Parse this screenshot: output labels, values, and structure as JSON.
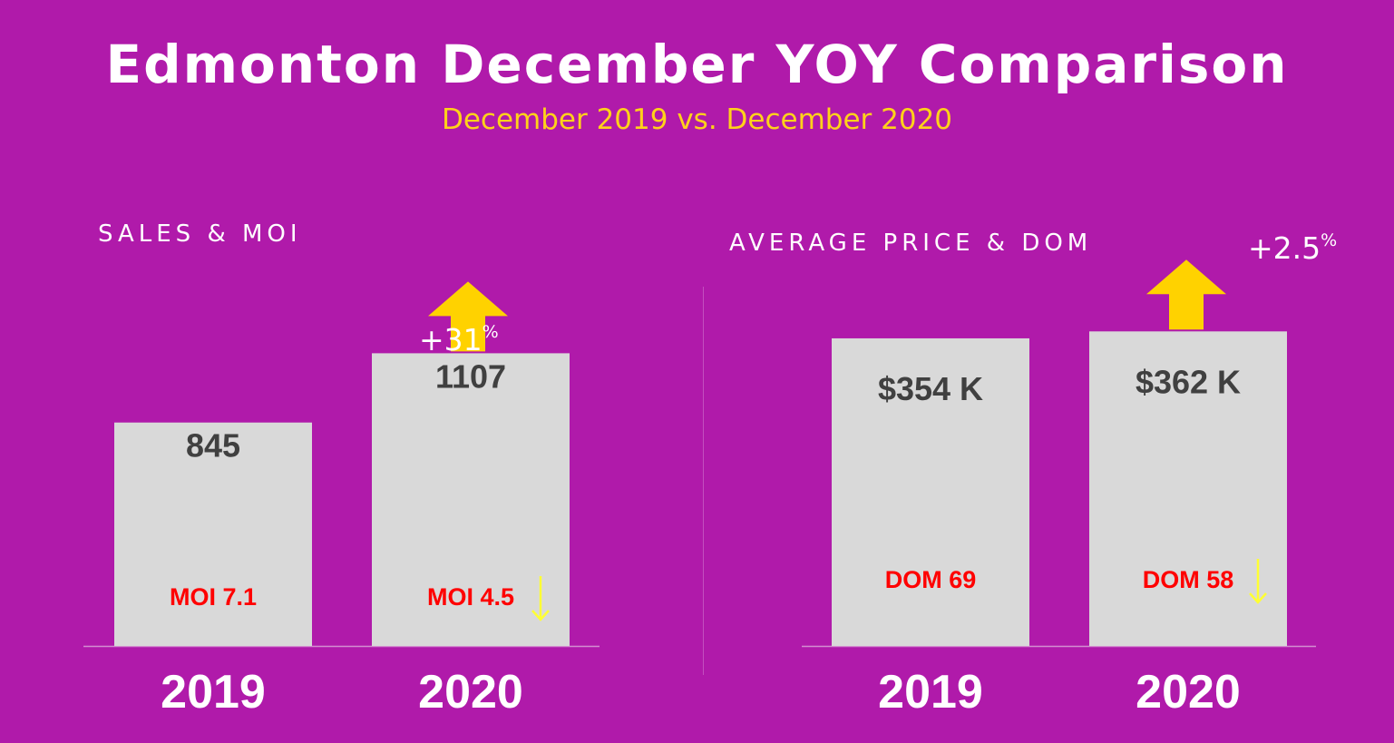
{
  "title": "Edmonton December YOY Comparison",
  "subtitle": "December 2019 vs. December 2020",
  "colors": {
    "background": "#b01aaa",
    "bar": "#d9d9d9",
    "title": "#ffffff",
    "subtitle": "#ffd21a",
    "arrow": "#ffd200",
    "value_text": "#404040",
    "secondary_text": "#ff0000",
    "down_arrow": "#ffff33",
    "baseline": "#d38ed0"
  },
  "chart_data": [
    {
      "type": "bar",
      "title": "SALES & MOI",
      "categories": [
        "2019",
        "2020"
      ],
      "values": [
        845,
        1107
      ],
      "value_labels": [
        "845",
        "1107"
      ],
      "secondary_labels": [
        "MOI 7.1",
        "MOI 4.5"
      ],
      "secondary_trend": [
        "none",
        "down"
      ],
      "change": "+31",
      "change_unit": "%",
      "change_direction": "up",
      "ylim": [
        0,
        1400
      ],
      "grid": false,
      "legend": "none"
    },
    {
      "type": "bar",
      "title": "AVERAGE PRICE & DOM",
      "categories": [
        "2019",
        "2020"
      ],
      "values": [
        354,
        362
      ],
      "value_labels": [
        "$354 K",
        "$362 K"
      ],
      "secondary_labels": [
        "DOM 69",
        "DOM 58"
      ],
      "secondary_trend": [
        "none",
        "down"
      ],
      "change": "+2.5",
      "change_unit": "%",
      "change_direction": "up",
      "ylim": [
        0,
        426
      ],
      "grid": false,
      "legend": "none"
    }
  ]
}
